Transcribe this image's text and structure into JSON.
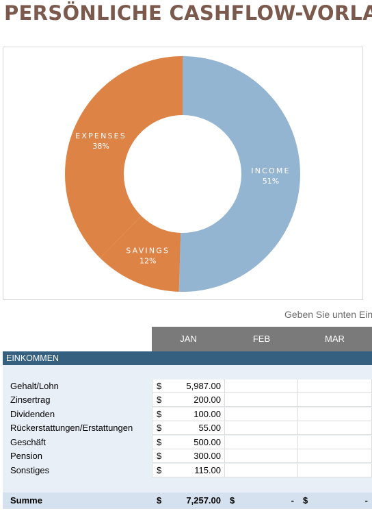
{
  "title": "PERSÖNLICHE CASHFLOW-VORLAGE",
  "hint": "Geben Sie unten Ein",
  "chart_data": {
    "type": "pie",
    "style": "donut",
    "categories": [
      "INCOME",
      "SAVINGS",
      "EXPENSES"
    ],
    "values": [
      51,
      12,
      38
    ],
    "percent_labels": [
      "51%",
      "12%",
      "38%"
    ],
    "colors": [
      "#94b5d2",
      "#de8346",
      "#de8346"
    ]
  },
  "months": [
    "JAN",
    "FEB",
    "MAR"
  ],
  "section": {
    "label": "EINKOMMEN"
  },
  "rows": [
    {
      "label": "Gehalt/Lohn",
      "currency": "$",
      "jan": "5,987.00"
    },
    {
      "label": "Zinsertrag",
      "currency": "$",
      "jan": "200.00"
    },
    {
      "label": "Dividenden",
      "currency": "$",
      "jan": "100.00"
    },
    {
      "label": "Rückerstattungen/Erstattungen",
      "currency": "$",
      "jan": "55.00"
    },
    {
      "label": "Geschäft",
      "currency": "$",
      "jan": "500.00"
    },
    {
      "label": "Pension",
      "currency": "$",
      "jan": "300.00"
    },
    {
      "label": "Sonstiges",
      "currency": "$",
      "jan": "115.00"
    }
  ],
  "total": {
    "label": "Summe",
    "currency": "$",
    "jan": "7,257.00",
    "feb": "-",
    "mar": "-"
  }
}
